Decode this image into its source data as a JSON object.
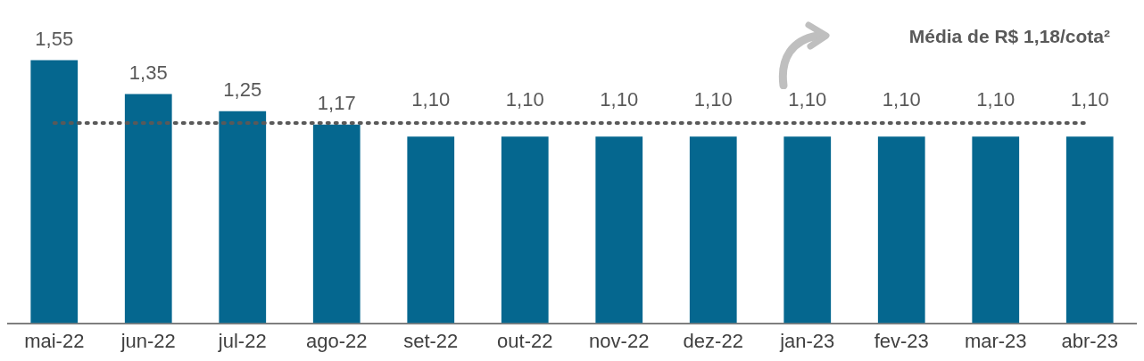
{
  "chart_data": {
    "type": "bar",
    "categories": [
      "mai-22",
      "jun-22",
      "jul-22",
      "ago-22",
      "set-22",
      "out-22",
      "nov-22",
      "dez-22",
      "jan-23",
      "fev-23",
      "mar-23",
      "abr-23"
    ],
    "values": [
      1.55,
      1.35,
      1.25,
      1.17,
      1.1,
      1.1,
      1.1,
      1.1,
      1.1,
      1.1,
      1.1,
      1.1
    ],
    "value_labels": [
      "1,55",
      "1,35",
      "1,25",
      "1,17",
      "1,10",
      "1,10",
      "1,10",
      "1,10",
      "1,10",
      "1,10",
      "1,10",
      "1,10"
    ],
    "color": "#05678f",
    "tick_labels": "x",
    "grid": false,
    "legend": false,
    "ref_lines": [
      {
        "axis": "y",
        "value": 1.18,
        "label": "Média de R$ 1,18/cota²",
        "color": "#595959",
        "line_style": "dotted"
      }
    ]
  }
}
